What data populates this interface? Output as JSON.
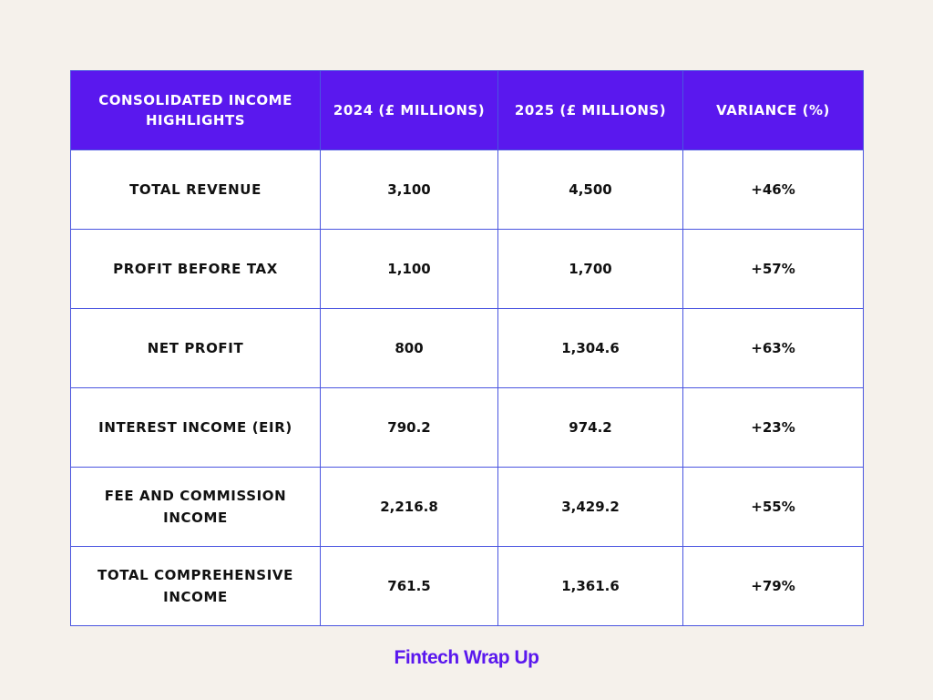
{
  "table": {
    "headers": [
      "Consolidated Income Highlights",
      "2024 (£ Millions)",
      "2025 (£ Millions)",
      "Variance (%)"
    ],
    "rows": [
      [
        "Total Revenue",
        "3,100",
        "4,500",
        "+46%"
      ],
      [
        "Profit Before Tax",
        "1,100",
        "1,700",
        "+57%"
      ],
      [
        "Net Profit",
        "800",
        "1,304.6",
        "+63%"
      ],
      [
        "Interest Income (EIR)",
        "790.2",
        "974.2",
        "+23%"
      ],
      [
        "Fee and Commission Income",
        "2,216.8",
        "3,429.2",
        "+55%"
      ],
      [
        "Total Comprehensive Income",
        "761.5",
        "1,361.6",
        "+79%"
      ]
    ]
  },
  "footer": {
    "brand": "Fintech Wrap Up"
  },
  "colors": {
    "background": "#f5f1eb",
    "header_bg": "#5a18ee",
    "border": "#4a55e0",
    "brand": "#5a18ee"
  }
}
